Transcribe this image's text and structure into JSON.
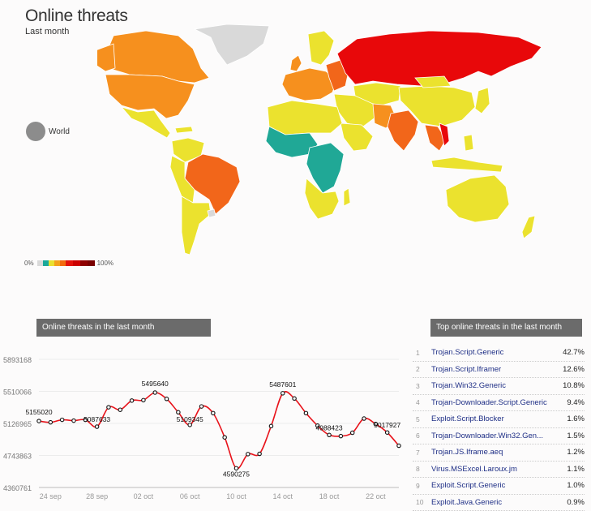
{
  "page": {
    "title": "Online threats",
    "subtitle": "Last month"
  },
  "legend": {
    "world_label": "World",
    "scale_min": "0%",
    "scale_max": "100%",
    "scale_colors": [
      "#d9d9d9",
      "#1aa89a",
      "#e9e030",
      "#f4a11a",
      "#f26b0f",
      "#e3120b",
      "#cc0000",
      "#8f0000",
      "#7a0000"
    ]
  },
  "colors": {
    "grey": "#d9d9d9",
    "teal": "#20a896",
    "yellow": "#ebe22e",
    "orange": "#f6901e",
    "dorange": "#f2661a",
    "red": "#e8080a",
    "line": "#e8121a"
  },
  "chart_panel": {
    "title": "Online threats in the last month"
  },
  "top_panel": {
    "title": "Top online threats in the last month"
  },
  "chart_data": {
    "type": "line",
    "title": "Online threats in the last month",
    "x": [
      "23 sep",
      "24 sep",
      "25 sep",
      "26 sep",
      "27 sep",
      "28 sep",
      "29 sep",
      "30 sep",
      "01 oct",
      "02 oct",
      "03 oct",
      "04 oct",
      "05 oct",
      "06 oct",
      "07 oct",
      "08 oct",
      "09 oct",
      "10 oct",
      "11 oct",
      "12 oct",
      "13 oct",
      "14 oct",
      "15 oct",
      "16 oct",
      "17 oct",
      "18 oct",
      "19 oct",
      "20 oct",
      "21 oct",
      "22 oct",
      "23 oct",
      "24 oct"
    ],
    "values": [
      5155020,
      5140000,
      5170000,
      5160000,
      5170000,
      5087633,
      5320000,
      5290000,
      5400000,
      5405000,
      5495640,
      5420000,
      5260000,
      5109345,
      5330000,
      5250000,
      4960000,
      4590275,
      4760000,
      4763000,
      5095000,
      5487601,
      5425000,
      5250000,
      5100000,
      4988423,
      4975000,
      5015000,
      5185000,
      5120000,
      5017927,
      4860000
    ],
    "labels": {
      "0": "5155020",
      "5": "5087633",
      "10": "5495640",
      "13": "5109345",
      "17": "4590275",
      "21": "5487601",
      "25": "4988423",
      "30": "5017927"
    },
    "ylim": [
      4360761,
      5893168
    ],
    "yticks": [
      "5893168",
      "5510066",
      "5126965",
      "4743863",
      "4360761"
    ],
    "xticks": [
      "24 sep",
      "28 sep",
      "02 oct",
      "06 oct",
      "10 oct",
      "14 oct",
      "18 oct",
      "22 oct"
    ]
  },
  "top_threats": [
    {
      "rank": "1",
      "name": "Trojan.Script.Generic",
      "pct": "42.7%"
    },
    {
      "rank": "2",
      "name": "Trojan.Script.Iframer",
      "pct": "12.6%"
    },
    {
      "rank": "3",
      "name": "Trojan.Win32.Generic",
      "pct": "10.8%"
    },
    {
      "rank": "4",
      "name": "Trojan-Downloader.Script.Generic",
      "pct": "9.4%"
    },
    {
      "rank": "5",
      "name": "Exploit.Script.Blocker",
      "pct": "1.6%"
    },
    {
      "rank": "6",
      "name": "Trojan-Downloader.Win32.Gen...",
      "pct": "1.5%"
    },
    {
      "rank": "7",
      "name": "Trojan.JS.Iframe.aeq",
      "pct": "1.2%"
    },
    {
      "rank": "8",
      "name": "Virus.MSExcel.Laroux.jm",
      "pct": "1.1%"
    },
    {
      "rank": "9",
      "name": "Exploit.Script.Generic",
      "pct": "1.0%"
    },
    {
      "rank": "10",
      "name": "Exploit.Java.Generic",
      "pct": "0.9%"
    }
  ]
}
